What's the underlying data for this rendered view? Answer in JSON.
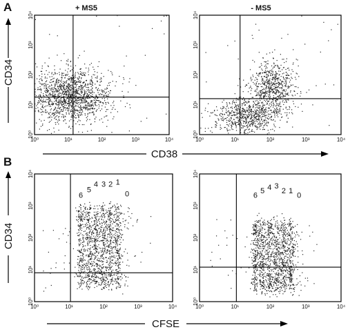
{
  "figure": {
    "panel_a_letter": "A",
    "panel_b_letter": "B",
    "col_left_title": "+ MS5",
    "col_right_title": "- MS5",
    "row_a_ylabel": "CD34",
    "row_a_xlabel": "CD38",
    "row_b_ylabel": "CD34",
    "row_b_xlabel": "CFSE"
  },
  "colors": {
    "dots": "#222222",
    "frame": "#000000",
    "background": "#ffffff"
  },
  "chart_data": [
    {
      "type": "scatter",
      "panel": "A-left",
      "xscale": "log",
      "yscale": "log",
      "xlim": [
        1,
        10000
      ],
      "ylim": [
        1,
        10000
      ],
      "xticks": [
        "10⁰",
        "10¹",
        "10²",
        "10³",
        "10⁴"
      ],
      "yticks": [
        "10⁰",
        "10¹",
        "10²",
        "10³",
        "10⁴"
      ],
      "quadrant_gate": {
        "x": 14,
        "y": 18
      },
      "clusters": [
        {
          "x_center": 12,
          "y_center": 20,
          "x_spread_dec": 0.6,
          "y_spread_dec": 0.45,
          "n": 1500
        }
      ]
    },
    {
      "type": "scatter",
      "panel": "A-right",
      "xscale": "log",
      "yscale": "log",
      "xlim": [
        1,
        10000
      ],
      "ylim": [
        1,
        10000
      ],
      "xticks": [
        "10⁰",
        "10¹",
        "10²",
        "10³",
        "10⁴"
      ],
      "yticks": [
        "10⁰",
        "10¹",
        "10²",
        "10³",
        "10⁴"
      ],
      "quadrant_gate": {
        "x": 14,
        "y": 16
      },
      "clusters": [
        {
          "x_center": 20,
          "y_center": 4,
          "x_spread_dec": 0.5,
          "y_spread_dec": 0.3,
          "n": 700
        },
        {
          "x_center": 120,
          "y_center": 40,
          "x_spread_dec": 0.3,
          "y_spread_dec": 0.45,
          "n": 700
        }
      ]
    },
    {
      "type": "scatter",
      "panel": "B-left",
      "xscale": "log",
      "yscale": "log",
      "xlim": [
        1,
        10000
      ],
      "ylim": [
        1,
        10000
      ],
      "xticks": [
        "10⁰",
        "10¹",
        "10²",
        "10³",
        "10⁴"
      ],
      "yticks": [
        "10⁰",
        "10¹",
        "10²",
        "10³",
        "10⁴"
      ],
      "quadrant_gate": {
        "x": 11,
        "y": 8
      },
      "division_peaks": [
        {
          "label": "6",
          "x": 22,
          "label_y": 1800
        },
        {
          "label": "5",
          "x": 38,
          "label_y": 2700
        },
        {
          "label": "4",
          "x": 60,
          "label_y": 4000
        },
        {
          "label": "3",
          "x": 100,
          "label_y": 4000
        },
        {
          "label": "2",
          "x": 160,
          "label_y": 4000
        },
        {
          "label": "1",
          "x": 260,
          "label_y": 4600
        },
        {
          "label": "0",
          "x": 480,
          "label_y": 2000
        }
      ],
      "column_y_range": [
        3,
        1000
      ]
    },
    {
      "type": "scatter",
      "panel": "B-right",
      "xscale": "log",
      "yscale": "log",
      "xlim": [
        1,
        10000
      ],
      "ylim": [
        1,
        10000
      ],
      "xticks": [
        "10⁰",
        "10¹",
        "10²",
        "10³",
        "10⁴"
      ],
      "yticks": [
        "10⁰",
        "10¹",
        "10²",
        "10³",
        "10⁴"
      ],
      "quadrant_gate": {
        "x": 11,
        "y": 12
      },
      "division_peaks": [
        {
          "label": "6",
          "x": 38,
          "label_y": 1800
        },
        {
          "label": "5",
          "x": 60,
          "label_y": 2500
        },
        {
          "label": "4",
          "x": 95,
          "label_y": 3200
        },
        {
          "label": "3",
          "x": 150,
          "label_y": 3500
        },
        {
          "label": "2",
          "x": 240,
          "label_y": 2500
        },
        {
          "label": "1",
          "x": 380,
          "label_y": 2500
        },
        {
          "label": "0",
          "x": 650,
          "label_y": 1800
        }
      ],
      "column_y_range": [
        2,
        320
      ]
    }
  ]
}
